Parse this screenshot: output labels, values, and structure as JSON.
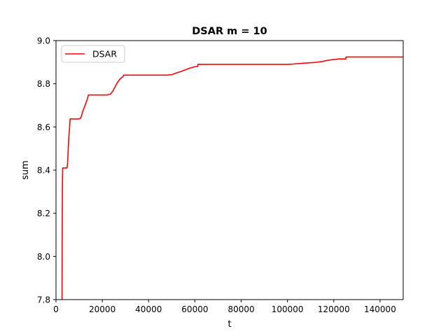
{
  "chart_data": {
    "type": "line",
    "title": "DSAR m = 10",
    "xlabel": "t",
    "ylabel": "sum",
    "xlim": [
      0,
      150000
    ],
    "ylim": [
      7.8,
      9.0
    ],
    "x_ticks": [
      0,
      20000,
      40000,
      60000,
      80000,
      100000,
      120000,
      140000
    ],
    "x_tick_labels": [
      "0",
      "20000",
      "40000",
      "60000",
      "80000",
      "100000",
      "120000",
      "140000"
    ],
    "y_ticks": [
      7.8,
      8.0,
      8.2,
      8.4,
      8.6,
      8.8,
      9.0
    ],
    "y_tick_labels": [
      "7.8",
      "8.0",
      "8.2",
      "8.4",
      "8.6",
      "8.8",
      "9.0"
    ],
    "grid": false,
    "legend": {
      "position": "top-left"
    },
    "series": [
      {
        "name": "DSAR",
        "color": "#ff0000",
        "points": [
          [
            2600,
            7.8
          ],
          [
            2650,
            7.95
          ],
          [
            2700,
            8.16
          ],
          [
            2800,
            8.35
          ],
          [
            2900,
            8.41
          ],
          [
            4800,
            8.41
          ],
          [
            5000,
            8.43
          ],
          [
            5300,
            8.5
          ],
          [
            5600,
            8.56
          ],
          [
            5900,
            8.6
          ],
          [
            6100,
            8.637
          ],
          [
            10000,
            8.637
          ],
          [
            10600,
            8.64
          ],
          [
            11000,
            8.65
          ],
          [
            11500,
            8.67
          ],
          [
            12200,
            8.69
          ],
          [
            12900,
            8.71
          ],
          [
            13600,
            8.73
          ],
          [
            14000,
            8.748
          ],
          [
            22000,
            8.748
          ],
          [
            23500,
            8.752
          ],
          [
            24500,
            8.765
          ],
          [
            25500,
            8.785
          ],
          [
            26500,
            8.805
          ],
          [
            27500,
            8.82
          ],
          [
            28500,
            8.83
          ],
          [
            29000,
            8.832
          ],
          [
            29200,
            8.84
          ],
          [
            48000,
            8.84
          ],
          [
            50000,
            8.842
          ],
          [
            52000,
            8.85
          ],
          [
            54000,
            8.857
          ],
          [
            56000,
            8.865
          ],
          [
            58000,
            8.873
          ],
          [
            60000,
            8.879
          ],
          [
            61200,
            8.88
          ],
          [
            61300,
            8.89
          ],
          [
            100000,
            8.89
          ],
          [
            102000,
            8.891
          ],
          [
            104000,
            8.893
          ],
          [
            108000,
            8.896
          ],
          [
            112000,
            8.899
          ],
          [
            115000,
            8.903
          ],
          [
            117000,
            8.908
          ],
          [
            119000,
            8.911
          ],
          [
            121000,
            8.913
          ],
          [
            122000,
            8.915
          ],
          [
            125200,
            8.915
          ],
          [
            125300,
            8.924
          ],
          [
            150000,
            8.924
          ]
        ]
      }
    ]
  }
}
